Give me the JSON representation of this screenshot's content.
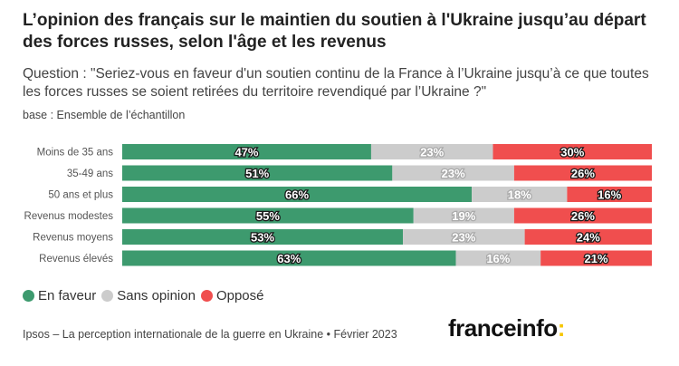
{
  "title": "L’opinion des français sur le maintien du soutien à l'Ukraine jusqu’au départ des forces russes, selon l'âge et les revenus",
  "subtitle": "Question : \"Seriez-vous en faveur d'un soutien continu de la France à l’Ukraine jusqu’à ce que toutes les forces russes se soient retirées du territoire revendiqué par l’Ukraine ?\"",
  "note": "base : Ensemble de l’échantillon",
  "source": "Ipsos – La perception internationale de la guerre en Ukraine • Février 2023",
  "brand": {
    "name": "franceinfo",
    "colon": ":"
  },
  "colors": {
    "favor": "#3d9a6e",
    "neutral": "#cccccc",
    "oppose": "#f04e4e",
    "brand_accent": "#f6c600"
  },
  "chart_data": {
    "type": "bar",
    "orientation": "horizontal",
    "stacked": true,
    "categories": [
      "Moins de 35 ans",
      "35-49 ans",
      "50 ans et plus",
      "Revenus modestes",
      "Revenus moyens",
      "Revenus élevés"
    ],
    "series": [
      {
        "name": "En faveur",
        "color": "#3d9a6e",
        "values": [
          47,
          51,
          66,
          55,
          53,
          63
        ]
      },
      {
        "name": "Sans opinion",
        "color": "#cccccc",
        "values": [
          23,
          23,
          18,
          19,
          23,
          16
        ]
      },
      {
        "name": "Opposé",
        "color": "#f04e4e",
        "values": [
          30,
          26,
          16,
          26,
          24,
          21
        ]
      }
    ],
    "value_suffix": "%",
    "xlim": [
      0,
      100
    ],
    "grid": false,
    "legend_position": "bottom-left"
  }
}
